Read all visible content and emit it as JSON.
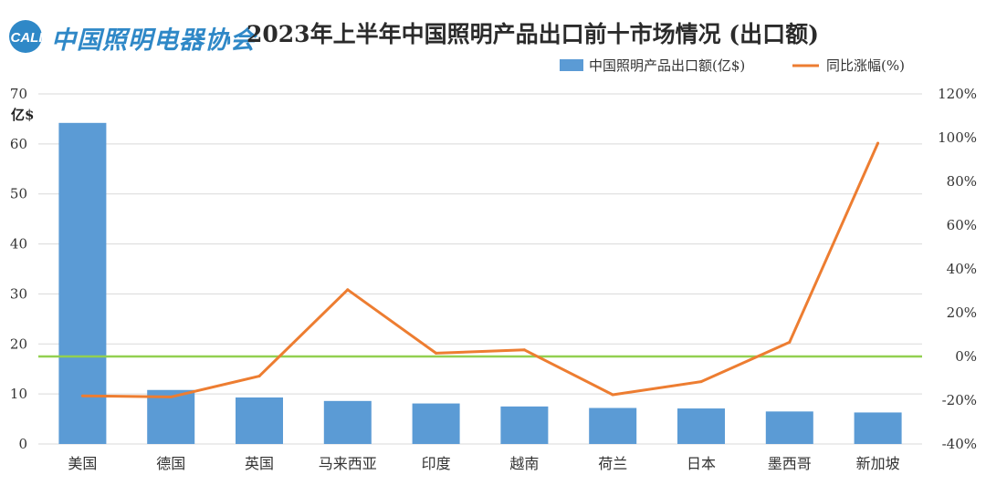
{
  "header": {
    "logo_abbr": "CALI",
    "logo_name": "中国照明电器协会"
  },
  "colors": {
    "bar": "#5b9bd5",
    "line": "#ed7d31",
    "zero_line": "#92d050",
    "grid": "#d9d9d9",
    "logo": "#2f88c7"
  },
  "chart_data": {
    "type": "bar",
    "title": "2023年上半年中国照明产品出口前十市场情况 (出口额)",
    "categories": [
      "美国",
      "德国",
      "英国",
      "马来西亚",
      "印度",
      "越南",
      "荷兰",
      "日本",
      "墨西哥",
      "新加坡"
    ],
    "series": [
      {
        "name": "中国照明产品出口额(亿$)",
        "type": "bar",
        "axis": "left",
        "values": [
          64.2,
          10.8,
          9.3,
          8.6,
          8.1,
          7.5,
          7.2,
          7.1,
          6.5,
          6.3
        ]
      },
      {
        "name": "同比涨幅(%)",
        "type": "line",
        "axis": "right",
        "values": [
          -18,
          -18.5,
          -9,
          30.5,
          1.5,
          3,
          -17.5,
          -11.5,
          6.5,
          97.5
        ]
      }
    ],
    "y_left": {
      "label": "亿$",
      "lim": [
        0,
        70
      ],
      "ticks": [
        "0",
        "10",
        "20",
        "30",
        "40",
        "50",
        "60",
        "70"
      ]
    },
    "y_right": {
      "label": "",
      "lim": [
        -40,
        120
      ],
      "ticks": [
        "-40%",
        "-20%",
        "0%",
        "20%",
        "40%",
        "60%",
        "80%",
        "100%",
        "120%"
      ]
    },
    "reference_line": {
      "axis": "right",
      "value": 0
    },
    "grid": true,
    "legend": "top-right"
  }
}
